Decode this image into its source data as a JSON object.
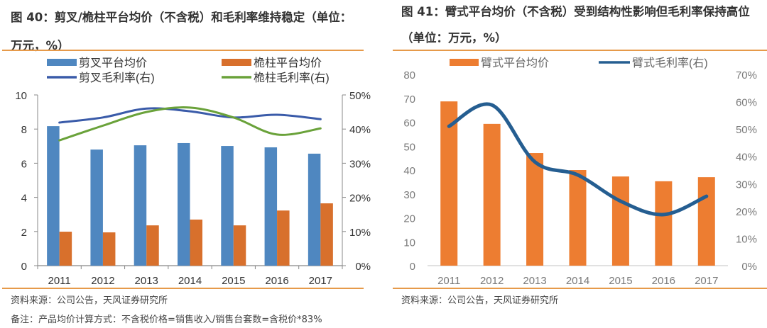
{
  "chart_data": [
    {
      "type": "bar",
      "title_line1": "图 40：剪叉/桅柱平台均价（不含税）和毛利率维持稳定（单位：",
      "title_line2": "万元，%）",
      "categories": [
        "2011",
        "2012",
        "2013",
        "2014",
        "2015",
        "2016",
        "2017"
      ],
      "series": [
        {
          "name": "剪叉平台均价",
          "kind": "bar",
          "axis": "left",
          "color": "#4f87c0",
          "values": [
            8.17,
            6.8,
            7.05,
            7.18,
            7.01,
            6.93,
            6.56
          ]
        },
        {
          "name": "桅柱平台均价",
          "kind": "bar",
          "axis": "left",
          "color": "#d8702c",
          "values": [
            1.99,
            1.95,
            2.36,
            2.7,
            2.36,
            3.23,
            3.65
          ]
        },
        {
          "name": "剪叉毛利率(右)",
          "kind": "line",
          "axis": "right",
          "color": "#3a5ba9",
          "values": [
            41.9,
            43.4,
            46.0,
            45.2,
            43.4,
            44.2,
            42.9
          ]
        },
        {
          "name": "桅柱毛利率(右)",
          "kind": "line",
          "axis": "right",
          "color": "#6aa23a",
          "values": [
            36.7,
            41.0,
            45.0,
            46.3,
            43.4,
            38.4,
            40.2
          ]
        }
      ],
      "ylim": [
        0,
        10
      ],
      "yticks": [
        "0",
        "2",
        "4",
        "6",
        "8",
        "10"
      ],
      "y2lim": [
        0,
        50
      ],
      "y2ticks": [
        "0%",
        "10%",
        "20%",
        "30%",
        "40%",
        "50%"
      ],
      "legend": "top",
      "grid": false,
      "source": "资料来源：公司公告，天风证券研究所",
      "note": "备注：产品均价计算方式：不含税价格=销售收入/销售台套数=含税价*83%"
    },
    {
      "type": "bar",
      "title_line1": "图 41：臂式平台均价（不含税）受到结构性影响但毛利率保持高位",
      "title_line2": "（单位：万元，%）",
      "categories": [
        "2011",
        "2012",
        "2013",
        "2014",
        "2015",
        "2016",
        "2017"
      ],
      "series": [
        {
          "name": "臂式平台均价",
          "kind": "bar",
          "axis": "left",
          "color": "#ed7d31",
          "values": [
            68.7,
            59.3,
            47.1,
            40.0,
            37.3,
            35.3,
            37.0
          ]
        },
        {
          "name": "臂式毛利率(右)",
          "kind": "line",
          "axis": "right",
          "color": "#255e91",
          "values": [
            51.0,
            58.8,
            38.0,
            33.2,
            23.6,
            18.7,
            25.4
          ]
        }
      ],
      "ylim": [
        0,
        80
      ],
      "yticks": [
        "0",
        "10",
        "20",
        "30",
        "40",
        "50",
        "60",
        "70",
        "80"
      ],
      "y2lim": [
        0,
        70
      ],
      "y2ticks": [
        "0%",
        "10%",
        "20%",
        "30%",
        "40%",
        "50%",
        "60%",
        "70%"
      ],
      "legend": "top",
      "grid": false,
      "source": "资料来源：公司公告，天风证券研究所"
    }
  ]
}
